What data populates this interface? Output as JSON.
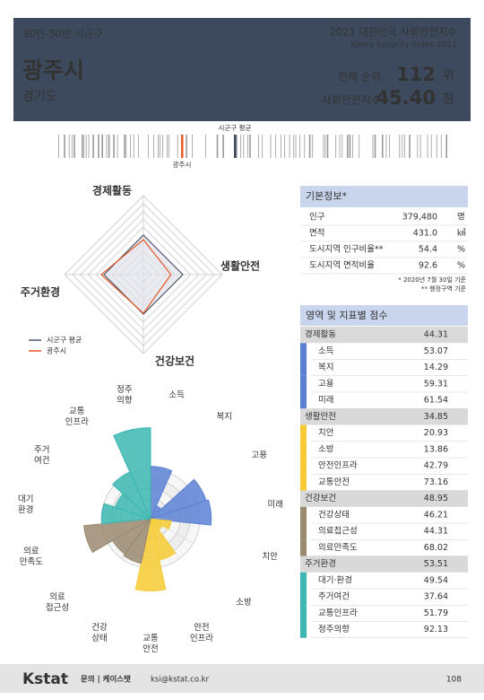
{
  "header": {
    "group": "30만-50만 시군구",
    "title_ko": "2021 대한민국 사회안전지수",
    "title_en": "Korea Security Index 2021",
    "city": "광주시",
    "province": "경기도",
    "rank_label": "전체 순위",
    "rank": 112,
    "rank_unit": "위",
    "index_label": "사회안전지수",
    "index": "45.40",
    "index_unit": "점"
  },
  "strip": {
    "average_label": "시군구 평균",
    "city_label": "광주시"
  },
  "basic_info": {
    "title": "기본정보*",
    "rows": [
      [
        "인구",
        "379,480",
        "명"
      ],
      [
        "면적",
        "431.0",
        "㎢"
      ],
      [
        "도시지역 인구비율**",
        "54.4",
        "%"
      ],
      [
        "도시지역 면적비율",
        "92.6",
        "%"
      ]
    ],
    "notes": [
      "* 2020년 7월 30일 기준",
      "** 행정구역 기준"
    ]
  },
  "scores": {
    "title": "영역 및 지표별 점수",
    "groups": [
      {
        "name": "경제활동",
        "score": "44.31",
        "color": "#5b80d3",
        "items": [
          [
            "소득",
            "53.07"
          ],
          [
            "복지",
            "14.29"
          ],
          [
            "고용",
            "59.31"
          ],
          [
            "미래",
            "61.54"
          ]
        ]
      },
      {
        "name": "생활안전",
        "score": "34.85",
        "color": "#f7cb34",
        "items": [
          [
            "치안",
            "20.93"
          ],
          [
            "소방",
            "13.86"
          ],
          [
            "안전인프라",
            "42.79"
          ],
          [
            "교통안전",
            "73.16"
          ]
        ]
      },
      {
        "name": "건강보건",
        "score": "48.95",
        "color": "#9a8a70",
        "items": [
          [
            "건강상태",
            "46.21"
          ],
          [
            "의료접근성",
            "44.31"
          ],
          [
            "의료만족도",
            "68.02"
          ]
        ]
      },
      {
        "name": "주거환경",
        "score": "53.51",
        "color": "#3cb7b1",
        "items": [
          [
            "대기·환경",
            "49.54"
          ],
          [
            "주거여건",
            "37.64"
          ],
          [
            "교통인프라",
            "51.79"
          ],
          [
            "정주의향",
            "92.13"
          ]
        ]
      }
    ]
  },
  "chart_data": [
    {
      "type": "radar",
      "categories": [
        "경제활동",
        "생활안전",
        "건강보건",
        "주거환경"
      ],
      "series": [
        {
          "name": "시군구 평균",
          "color": "#4a5566",
          "values": [
            50,
            50,
            50,
            50
          ]
        },
        {
          "name": "광주시",
          "color": "#e8582a",
          "values": [
            44.31,
            34.85,
            48.95,
            53.51
          ]
        }
      ],
      "rlim": [
        0,
        100
      ],
      "rgrid": [
        10,
        20,
        30,
        40,
        50,
        60,
        70,
        80,
        90,
        100
      ]
    },
    {
      "type": "polar_bar",
      "categories": [
        "소득",
        "복지",
        "고용",
        "미래",
        "치안",
        "소방",
        "안전\n인프라",
        "교통\n안전",
        "건강\n상태",
        "의료\n접근성",
        "의료\n만족도",
        "대기\n환경",
        "주거\n여건",
        "교통\n인프라",
        "정주\n의향"
      ],
      "values": [
        53.07,
        14.29,
        59.31,
        61.54,
        20.93,
        13.86,
        42.79,
        73.16,
        46.21,
        44.31,
        68.02,
        49.54,
        37.64,
        51.79,
        92.13
      ],
      "colors": [
        "#5b80d3",
        "#5b80d3",
        "#5b80d3",
        "#5b80d3",
        "#f7cb34",
        "#f7cb34",
        "#f7cb34",
        "#f7cb34",
        "#9a8a70",
        "#9a8a70",
        "#9a8a70",
        "#3cb7b1",
        "#3cb7b1",
        "#3cb7b1",
        "#3cb7b1"
      ],
      "rlim": [
        0,
        100
      ],
      "rgrid": [
        10,
        20,
        30,
        40,
        50
      ]
    }
  ],
  "footer": {
    "logo": "Kstat",
    "contact": "문의 | 케이스탯",
    "email": "ksi@kstat.co.kr",
    "page": "108"
  }
}
